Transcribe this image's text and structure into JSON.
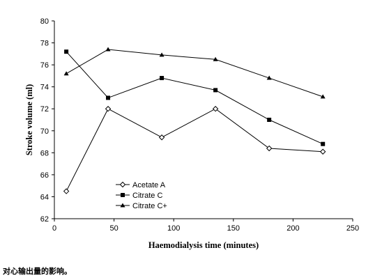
{
  "chart_data": {
    "type": "line",
    "xlabel": "Haemodialysis time (minutes)",
    "ylabel": "Stroke volume (ml)",
    "xlim": [
      0,
      250
    ],
    "ylim": [
      62,
      80
    ],
    "xticks": [
      "0",
      "50",
      "100",
      "150",
      "200",
      "250"
    ],
    "yticks": [
      "62",
      "64",
      "66",
      "68",
      "70",
      "72",
      "74",
      "76",
      "78",
      "80"
    ],
    "grid": false,
    "legend_position": "lower-left",
    "series": [
      {
        "name": "Acetate A",
        "marker": "open-diamond",
        "color": "#000000",
        "points": [
          [
            10,
            64.5
          ],
          [
            45,
            72.0
          ],
          [
            90,
            69.4
          ],
          [
            135,
            72.0
          ],
          [
            180,
            68.4
          ],
          [
            225,
            68.1
          ]
        ]
      },
      {
        "name": "Citrate C",
        "marker": "filled-square",
        "color": "#000000",
        "points": [
          [
            10,
            77.2
          ],
          [
            45,
            73.0
          ],
          [
            90,
            74.8
          ],
          [
            135,
            73.7
          ],
          [
            180,
            71.0
          ],
          [
            225,
            68.8
          ]
        ]
      },
      {
        "name": "Citrate C+",
        "marker": "filled-triangle",
        "color": "#000000",
        "points": [
          [
            10,
            75.2
          ],
          [
            45,
            77.4
          ],
          [
            90,
            76.9
          ],
          [
            135,
            76.5
          ],
          [
            180,
            74.8
          ],
          [
            225,
            73.1
          ]
        ]
      }
    ]
  },
  "caption": "对心输出量的影响。"
}
